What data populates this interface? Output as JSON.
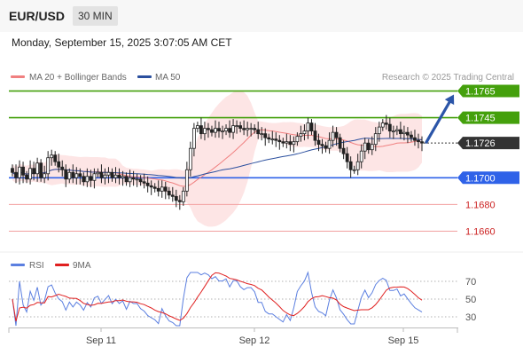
{
  "header": {
    "pair": "EUR/USD",
    "timeframe": "30 MIN"
  },
  "datetime": "Monday, September 15, 2025 3:07:05 AM CET",
  "watermark": "Research © 2025 Trading Central",
  "legend_main": [
    {
      "label": "MA 20 + Bollinger Bands",
      "color": "#f08080"
    },
    {
      "label": "MA 50",
      "color": "#2b4f9e"
    }
  ],
  "legend_rsi": [
    {
      "label": "RSI",
      "color": "#5b7fe0"
    },
    {
      "label": "9MA",
      "color": "#e02020"
    }
  ],
  "chart_data": [
    {
      "type": "candlestick",
      "ylim": [
        1.1645,
        1.177
      ],
      "x_ticks": [
        "Sep 11",
        "Sep 12",
        "Sep 15"
      ],
      "current_price": {
        "value": 1.1726,
        "label": "1.1726",
        "color": "#333333"
      },
      "levels": [
        {
          "value": 1.1765,
          "label": "1.1765",
          "kind": "resistance",
          "color": "#44a00c"
        },
        {
          "value": 1.1745,
          "label": "1.1745",
          "kind": "resistance",
          "color": "#44a00c"
        },
        {
          "value": 1.17,
          "label": "1.1700",
          "kind": "pivot",
          "color": "#2f62e8"
        },
        {
          "value": 1.168,
          "label": "1.1680",
          "kind": "support",
          "color": "#cc2222"
        },
        {
          "value": 1.166,
          "label": "1.1660",
          "kind": "support",
          "color": "#cc2222"
        }
      ],
      "projection": {
        "from": 1.1726,
        "to": 1.1765,
        "color": "#2b55a8"
      },
      "close": [
        1.1704,
        1.17,
        1.1708,
        1.1702,
        1.1699,
        1.1707,
        1.1703,
        1.1711,
        1.17,
        1.1703,
        1.1715,
        1.1717,
        1.1712,
        1.1708,
        1.1706,
        1.1699,
        1.1704,
        1.17,
        1.1703,
        1.1701,
        1.1697,
        1.1701,
        1.1698,
        1.1703,
        1.1704,
        1.17,
        1.1702,
        1.1704,
        1.17,
        1.1702,
        1.17,
        1.1701,
        1.1697,
        1.17,
        1.1699,
        1.1699,
        1.1697,
        1.1696,
        1.1694,
        1.1693,
        1.1692,
        1.169,
        1.1693,
        1.169,
        1.1687,
        1.1686,
        1.1683,
        1.1682,
        1.169,
        1.1706,
        1.1722,
        1.1737,
        1.1739,
        1.1733,
        1.1737,
        1.1736,
        1.1734,
        1.1737,
        1.1735,
        1.1735,
        1.1737,
        1.1734,
        1.1739,
        1.1739,
        1.1737,
        1.1736,
        1.1737,
        1.1737,
        1.1736,
        1.1733,
        1.1733,
        1.173,
        1.1729,
        1.1729,
        1.1728,
        1.1727,
        1.1726,
        1.1727,
        1.1725,
        1.1727,
        1.1731,
        1.1733,
        1.1735,
        1.1741,
        1.1735,
        1.1728,
        1.1725,
        1.1724,
        1.1722,
        1.1728,
        1.1734,
        1.173,
        1.1722,
        1.1718,
        1.1712,
        1.1706,
        1.1706,
        1.1712,
        1.172,
        1.1726,
        1.1721,
        1.1725,
        1.1733,
        1.1738,
        1.1741,
        1.174,
        1.1735,
        1.1735,
        1.1736,
        1.1733,
        1.1734,
        1.1732,
        1.173,
        1.1728,
        1.1727,
        1.1726
      ],
      "rsi_ticks": [
        70,
        50,
        30
      ],
      "rsi_ylim": [
        20,
        80
      ]
    }
  ]
}
